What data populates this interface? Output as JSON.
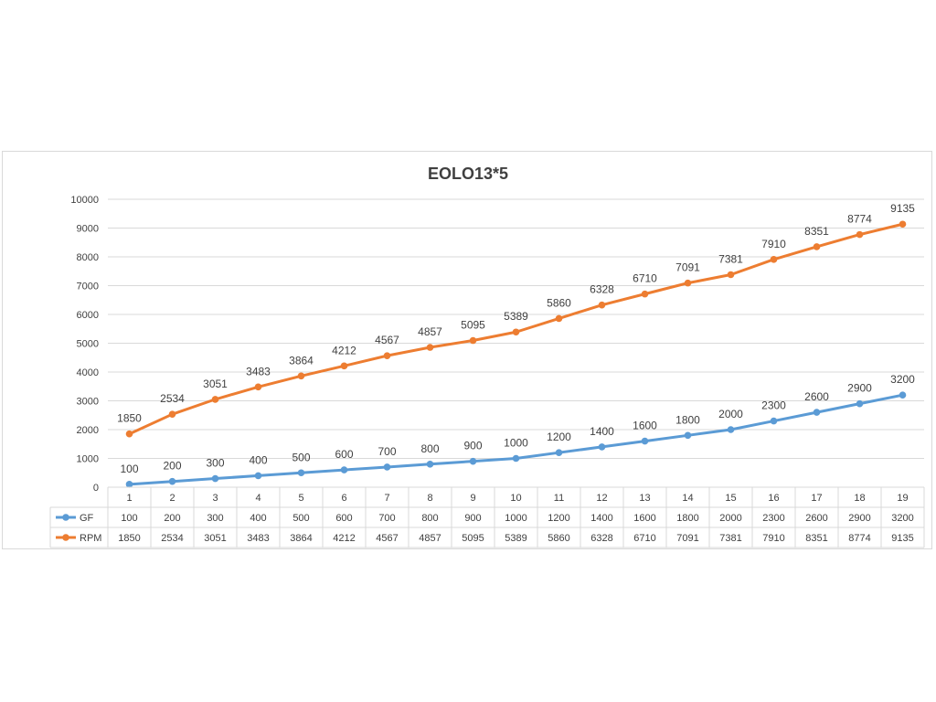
{
  "chart_data": {
    "type": "line",
    "title": "EOLO13*5",
    "xlabel": "",
    "ylabel": "",
    "ylim": [
      0,
      10000
    ],
    "yticks": [
      0,
      1000,
      2000,
      3000,
      4000,
      5000,
      6000,
      7000,
      8000,
      9000,
      10000
    ],
    "grid": true,
    "legend": "data-table",
    "categories": [
      "1",
      "2",
      "3",
      "4",
      "5",
      "6",
      "7",
      "8",
      "9",
      "10",
      "11",
      "12",
      "13",
      "14",
      "15",
      "16",
      "17",
      "18",
      "19"
    ],
    "series": [
      {
        "name": "GF",
        "color": "#5b9bd5",
        "values": [
          100,
          200,
          300,
          400,
          500,
          600,
          700,
          800,
          900,
          1000,
          1200,
          1400,
          1600,
          1800,
          2000,
          2300,
          2600,
          2900,
          3200
        ]
      },
      {
        "name": "RPM",
        "color": "#ed7d31",
        "values": [
          1850,
          2534,
          3051,
          3483,
          3864,
          4212,
          4567,
          4857,
          5095,
          5389,
          5860,
          6328,
          6710,
          7091,
          7381,
          7910,
          8351,
          8774,
          9135
        ]
      }
    ]
  }
}
